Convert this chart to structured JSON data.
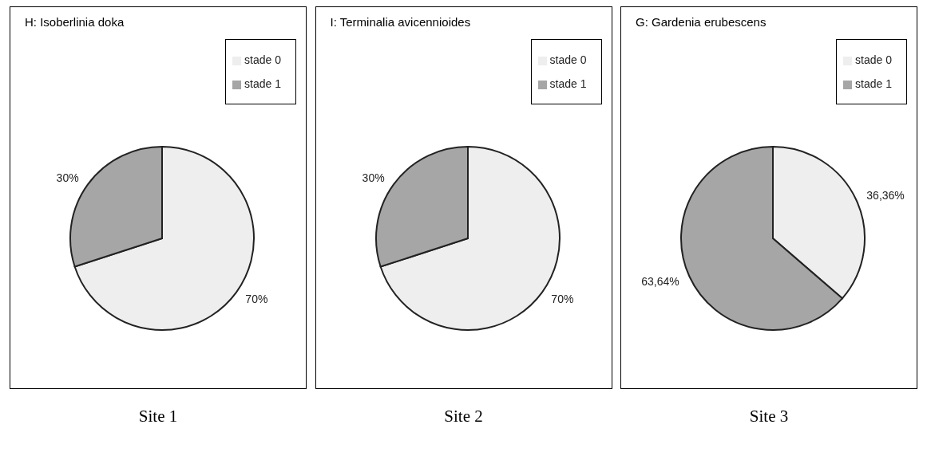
{
  "chart_data": [
    {
      "type": "pie",
      "title": "H: Isoberlinia doka",
      "categories": [
        "stade 0",
        "stade 1"
      ],
      "values": [
        70,
        30
      ],
      "colors": [
        "#eeeeee",
        "#a6a6a6"
      ],
      "value_labels": [
        "70%",
        "30%"
      ],
      "legend": "top right",
      "annotations": [
        "Site 1"
      ]
    },
    {
      "type": "pie",
      "title": "I: Terminalia avicennioides",
      "categories": [
        "stade 0",
        "stade 1"
      ],
      "values": [
        70,
        30
      ],
      "colors": [
        "#eeeeee",
        "#a6a6a6"
      ],
      "value_labels": [
        "70%",
        "30%"
      ],
      "legend": "top right",
      "annotations": [
        "Site 2"
      ]
    },
    {
      "type": "pie",
      "title": "G: Gardenia erubescens",
      "categories": [
        "stade 0",
        "stade 1"
      ],
      "values": [
        36.36,
        63.64
      ],
      "colors": [
        "#eeeeee",
        "#a6a6a6"
      ],
      "value_labels": [
        "36,36%",
        "63,64%"
      ],
      "legend": "top right",
      "annotations": [
        "Site 3"
      ]
    }
  ]
}
